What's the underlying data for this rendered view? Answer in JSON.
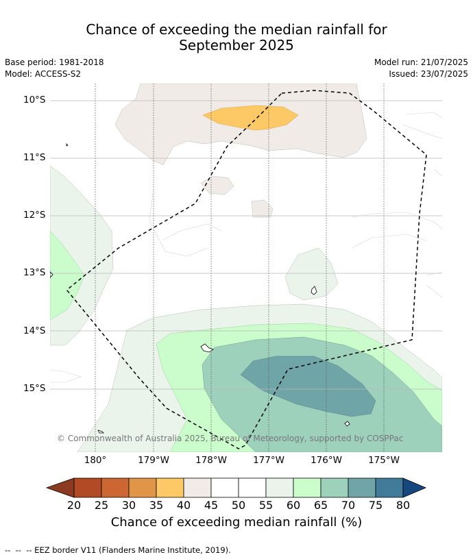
{
  "title_line1": "Chance of exceeding the median rainfall for",
  "title_line2": "September 2025",
  "meta": {
    "base_period": "Base period: 1981-2018",
    "model": "Model: ACCESS-S2",
    "model_run": "Model run: 21/07/2025",
    "issued": "Issued: 23/07/2025"
  },
  "lat_labels": [
    "10°S",
    "11°S",
    "12°S",
    "13°S",
    "14°S",
    "15°S"
  ],
  "lon_labels": [
    "180°",
    "179°W",
    "178°W",
    "177°W",
    "176°W",
    "175°W"
  ],
  "copyright": "© Commonwealth of Australia 2025, Bureau of Meteorology, supported by COSPPac",
  "colorbar": {
    "ticks": [
      "20",
      "25",
      "30",
      "35",
      "40",
      "45",
      "50",
      "55",
      "60",
      "65",
      "70",
      "75",
      "80"
    ],
    "colors": {
      "below20": "#8c3a22",
      "c20_25": "#b24a26",
      "c25_30": "#cc6633",
      "c30_35": "#e09548",
      "c35_40": "#fdc966",
      "c40_45": "#f0ebe6",
      "c45_50": "#ffffff",
      "c50_55": "#ffffff",
      "c55_60": "#eaf4eb",
      "c60_65": "#cbfccb",
      "c65_70": "#9dd1bb",
      "c70_75": "#70a5a8",
      "c75_80": "#427a9a",
      "above80": "#17477f"
    },
    "label": "Chance of exceeding median rainfall (%)"
  },
  "footer": "--  --  -- EEZ border V11 (Flanders Marine Institute, 2019)."
}
